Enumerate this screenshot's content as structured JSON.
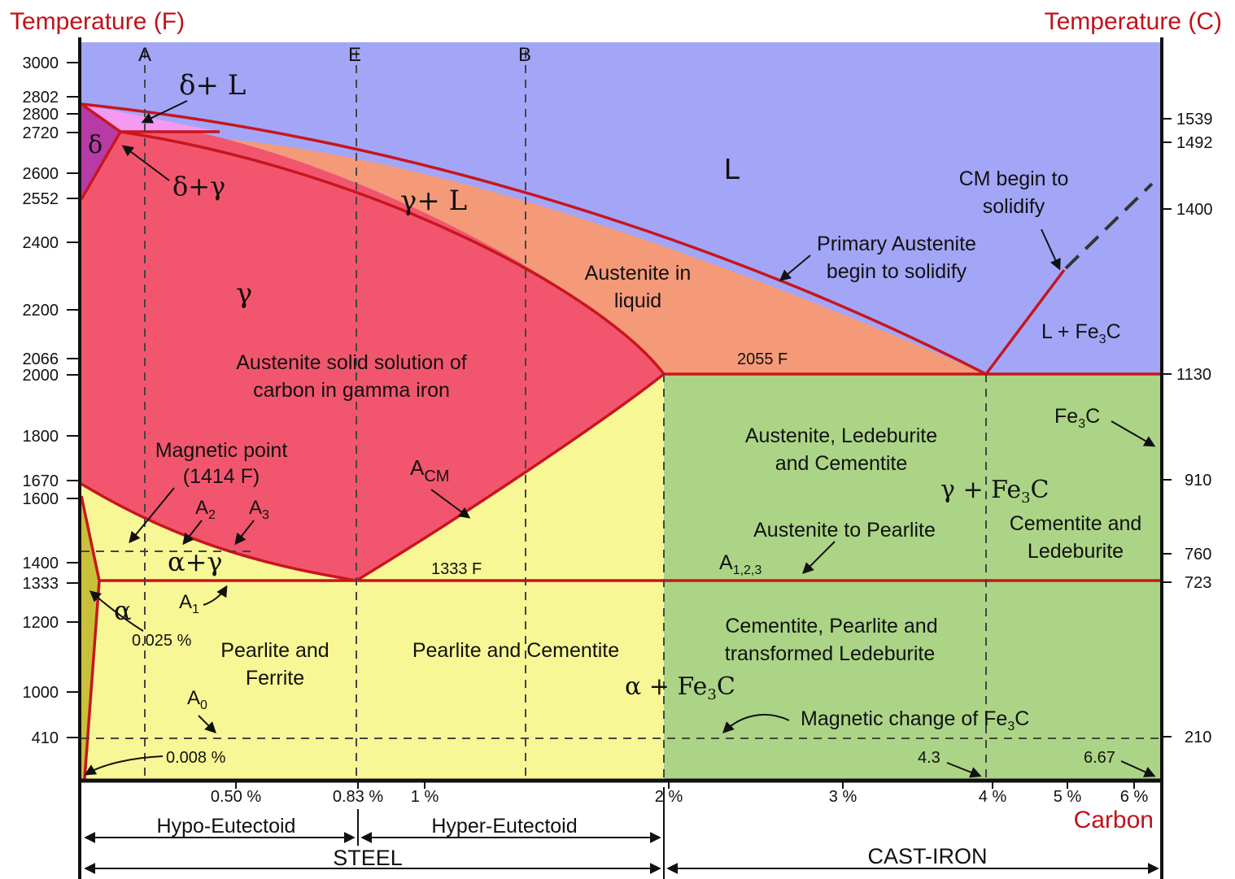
{
  "axis": {
    "left_title": "Temperature (F)",
    "right_title": "Temperature (C)",
    "bottom_title": "Carbon",
    "left_ticks": [
      "3000",
      "2802",
      "2800",
      "2720",
      "2600",
      "2552",
      "2400",
      "2200",
      "2066",
      "2000",
      "1800",
      "1670",
      "1600",
      "1400",
      "1333",
      "1200",
      "1000",
      "410"
    ],
    "right_ticks": [
      "1539",
      "1492",
      "1400",
      "1130",
      "910",
      "760",
      "723",
      "210"
    ],
    "bottom_ticks": [
      "0.50 %",
      "0.83 %",
      "1 %",
      "2 %",
      "3 %",
      "4 %",
      "5 %",
      "6 %"
    ]
  },
  "reference_lines": {
    "a": "A",
    "e": "E",
    "b": "B"
  },
  "phases": {
    "delta_l": "δ+ L",
    "delta": "δ",
    "delta_gamma": "δ+γ",
    "liquid": "L",
    "gamma_l": "γ+ L",
    "gamma": "γ",
    "austenite_solid_1": "Austenite solid solution of",
    "austenite_solid_2": "carbon in gamma iron",
    "austenite_liquid_1": "Austenite in",
    "austenite_liquid_2": "liquid",
    "primary_austenite_1": "Primary Austenite",
    "primary_austenite_2": "begin to solidify",
    "cm_begin_1": "CM begin to",
    "cm_begin_2": "solidify",
    "l_fe3c": "L + Fe",
    "l_fe3c_sub": "3",
    "l_fe3c_end": "C",
    "temp_2055": "2055 F",
    "fe3c": "Fe",
    "fe3c_sub": "3",
    "fe3c_end": "C",
    "aus_ledeburite_1": "Austenite, Ledeburite",
    "aus_ledeburite_2": "and Cementite",
    "gamma_fe3c": "γ + Fe",
    "gamma_fe3c_sub": "3",
    "gamma_fe3c_end": "C",
    "cem_ledeburite_1": "Cementite and",
    "cem_ledeburite_2": "Ledeburite",
    "aus_pearlite": "Austenite to Pearlite",
    "a123": "A",
    "a123_sub": "1,2,3",
    "magnetic_point_1": "Magnetic point",
    "magnetic_point_2": "(1414 F)",
    "a2": "A",
    "a2_sub": "2",
    "a3": "A",
    "a3_sub": "3",
    "acm": "A",
    "acm_sub": "CM",
    "alpha_gamma": "α+γ",
    "temp_1333": "1333 F",
    "alpha": "α",
    "a1": "A",
    "a1_sub": "1",
    "pct_0025": "0.025 %",
    "pearlite_ferrite_1": "Pearlite and",
    "pearlite_ferrite_2": "Ferrite",
    "pearlite_cementite": "Pearlite and Cementite",
    "alpha_fe3c": "α + Fe",
    "alpha_fe3c_sub": "3",
    "alpha_fe3c_end": "C",
    "cem_pearlite_1": "Cementite, Pearlite and",
    "cem_pearlite_2": "transformed Ledeburite",
    "a0": "A",
    "a0_sub": "0",
    "magnetic_change": "Magnetic change of Fe",
    "magnetic_change_sub": "3",
    "magnetic_change_end": "C",
    "pct_0008": "0.008 %",
    "pct_43": "4.3",
    "pct_667": "6.67"
  },
  "ranges": {
    "hypo": "Hypo-Eutectoid",
    "hyper": "Hyper-Eutectoid",
    "steel": "STEEL",
    "cast_iron": "CAST-IRON"
  },
  "colors": {
    "liquid": "#a3a6f7",
    "delta_l": "#f49af0",
    "delta": "#b83aa6",
    "delta_gamma": "#8fe4ec",
    "gamma_l": "#f59a79",
    "gamma": "#f2566e",
    "yellow": "#f7f796",
    "green": "#acd486",
    "ferrite": "#c9c03a",
    "red_line": "#c8151e",
    "axis_title": "#c0121b"
  }
}
